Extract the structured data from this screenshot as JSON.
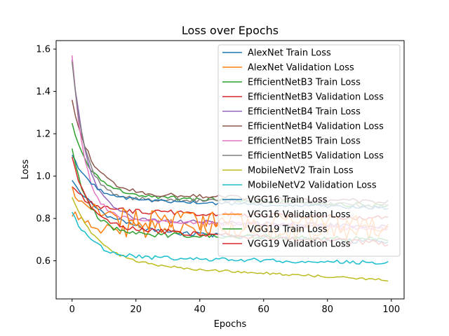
{
  "chart_data": {
    "type": "line",
    "title": "Loss over Epochs",
    "xlabel": "Epochs",
    "ylabel": "Loss",
    "xlim": [
      -5,
      104
    ],
    "ylim": [
      0.42,
      1.64
    ],
    "xticks": [
      0,
      20,
      40,
      60,
      80,
      100
    ],
    "yticks": [
      0.6,
      0.8,
      1.0,
      1.2,
      1.4,
      1.6
    ],
    "grid": false,
    "legend_position": "top-right",
    "n_points": 100,
    "series": [
      {
        "name": "AlexNet Train Loss",
        "color": "#1f77b4",
        "start": 0.98,
        "mid": 0.74,
        "end": 0.69,
        "knee": 10,
        "tail_slope": 0.03,
        "noise": 0.012,
        "seed": 1
      },
      {
        "name": "AlexNet Validation Loss",
        "color": "#ff7f0e",
        "start": 0.81,
        "mid": 0.76,
        "end": 0.73,
        "knee": 4,
        "tail_slope": 0.02,
        "noise": 0.045,
        "seed": 2
      },
      {
        "name": "EfficientNetB3 Train Loss",
        "color": "#2ca02c",
        "start": 1.25,
        "mid": 0.91,
        "end": 0.86,
        "knee": 6,
        "tail_slope": 0.04,
        "noise": 0.01,
        "seed": 3
      },
      {
        "name": "EfficientNetB3 Validation Loss",
        "color": "#d62728",
        "start": 0.95,
        "mid": 0.84,
        "end": 0.8,
        "knee": 5,
        "tail_slope": 0.03,
        "noise": 0.012,
        "seed": 4
      },
      {
        "name": "EfficientNetB4 Train Loss",
        "color": "#9467bd",
        "start": 1.55,
        "mid": 0.8,
        "end": 0.76,
        "knee": 5,
        "tail_slope": 0.03,
        "noise": 0.01,
        "seed": 5
      },
      {
        "name": "EfficientNetB4 Validation Loss",
        "color": "#8c564b",
        "start": 1.36,
        "mid": 0.92,
        "end": 0.88,
        "knee": 6,
        "tail_slope": 0.03,
        "noise": 0.01,
        "seed": 6
      },
      {
        "name": "EfficientNetB5 Train Loss",
        "color": "#e377c2",
        "start": 1.57,
        "mid": 0.8,
        "end": 0.75,
        "knee": 4,
        "tail_slope": 0.03,
        "noise": 0.01,
        "seed": 7
      },
      {
        "name": "EfficientNetB5 Validation Loss",
        "color": "#7f7f7f",
        "start": 1.54,
        "mid": 0.9,
        "end": 0.86,
        "knee": 4,
        "tail_slope": 0.02,
        "noise": 0.01,
        "seed": 8
      },
      {
        "name": "MobileNetV2 Train Loss",
        "color": "#bcbd22",
        "start": 0.9,
        "mid": 0.59,
        "end": 0.51,
        "knee": 8,
        "tail_slope": 0.06,
        "noise": 0.006,
        "seed": 9
      },
      {
        "name": "MobileNetV2 Validation Loss",
        "color": "#17becf",
        "start": 0.83,
        "mid": 0.62,
        "end": 0.59,
        "knee": 6,
        "tail_slope": 0.03,
        "noise": 0.01,
        "seed": 10
      },
      {
        "name": "VGG16 Train Loss",
        "color": "#1f77b4",
        "start": 1.1,
        "mid": 0.89,
        "end": 0.85,
        "knee": 6,
        "tail_slope": 0.03,
        "noise": 0.008,
        "seed": 11
      },
      {
        "name": "VGG16 Validation Loss",
        "color": "#ff7f0e",
        "start": 0.95,
        "mid": 0.8,
        "end": 0.77,
        "knee": 5,
        "tail_slope": 0.02,
        "noise": 0.045,
        "seed": 12
      },
      {
        "name": "VGG19 Train Loss",
        "color": "#2ca02c",
        "start": 1.13,
        "mid": 0.73,
        "end": 0.7,
        "knee": 5,
        "tail_slope": 0.03,
        "noise": 0.012,
        "seed": 13
      },
      {
        "name": "VGG19 Validation Loss",
        "color": "#d62728",
        "start": 1.09,
        "mid": 0.76,
        "end": 0.68,
        "knee": 5,
        "tail_slope": 0.05,
        "noise": 0.012,
        "seed": 14
      }
    ]
  }
}
